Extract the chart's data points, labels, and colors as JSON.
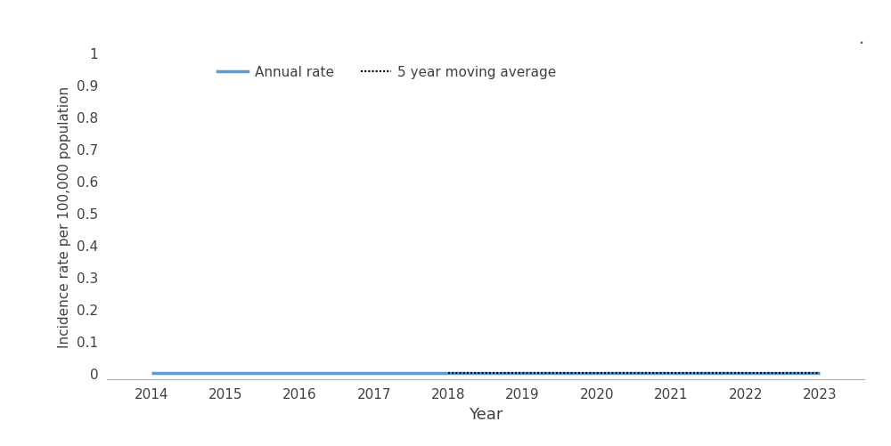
{
  "years": [
    2014,
    2015,
    2016,
    2017,
    2018,
    2019,
    2020,
    2021,
    2022,
    2023
  ],
  "annual_rate": [
    0.0,
    0.0,
    0.0,
    0.0,
    0.0,
    0.0,
    0.0,
    0.0,
    0.0,
    0.0
  ],
  "moving_avg_years": [
    2018,
    2019,
    2020,
    2021,
    2022,
    2023
  ],
  "moving_avg": [
    0.0,
    0.0,
    0.0,
    0.0,
    0.0,
    0.0
  ],
  "annual_rate_color": "#5B9BD5",
  "moving_avg_color": "#000000",
  "xlabel": "Year",
  "ylabel": "Incidence rate per 100,000 population",
  "ylim": [
    0,
    1
  ],
  "yticks": [
    0,
    0.1,
    0.2,
    0.3,
    0.4,
    0.5,
    0.6,
    0.7,
    0.8,
    0.9,
    1
  ],
  "ytick_labels": [
    "0",
    "0.1",
    "0.2",
    "0.3",
    "0.4",
    "0.5",
    "0.6",
    "0.7",
    "0.8",
    "0.9",
    "1"
  ],
  "legend_annual_label": "Annual rate",
  "legend_ma_label": "5 year moving average",
  "background_color": "#ffffff",
  "annual_rate_linewidth": 2.5,
  "moving_avg_linewidth": 1.5,
  "xlabel_fontsize": 13,
  "ylabel_fontsize": 11,
  "tick_fontsize": 11,
  "legend_fontsize": 11,
  "text_color": "#404040"
}
